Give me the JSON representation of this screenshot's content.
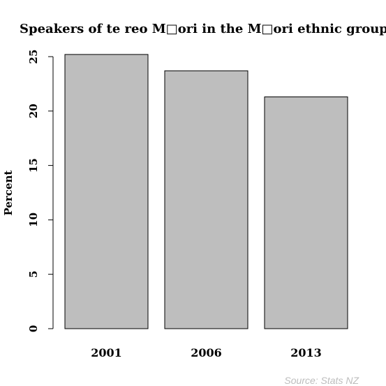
{
  "chart_data": {
    "type": "bar",
    "title": "Speakers of te reo M□ori in the M□ori ethnic group",
    "ylabel": "Percent",
    "xlabel": "",
    "categories": [
      "2001",
      "2006",
      "2013"
    ],
    "values": [
      25.2,
      23.7,
      21.3
    ],
    "ylim": [
      0,
      25
    ],
    "yticks": [
      "0",
      "5",
      "10",
      "15",
      "20",
      "25"
    ],
    "bar_color": "#bebebe",
    "grid": false,
    "source": "Source: Stats NZ"
  }
}
